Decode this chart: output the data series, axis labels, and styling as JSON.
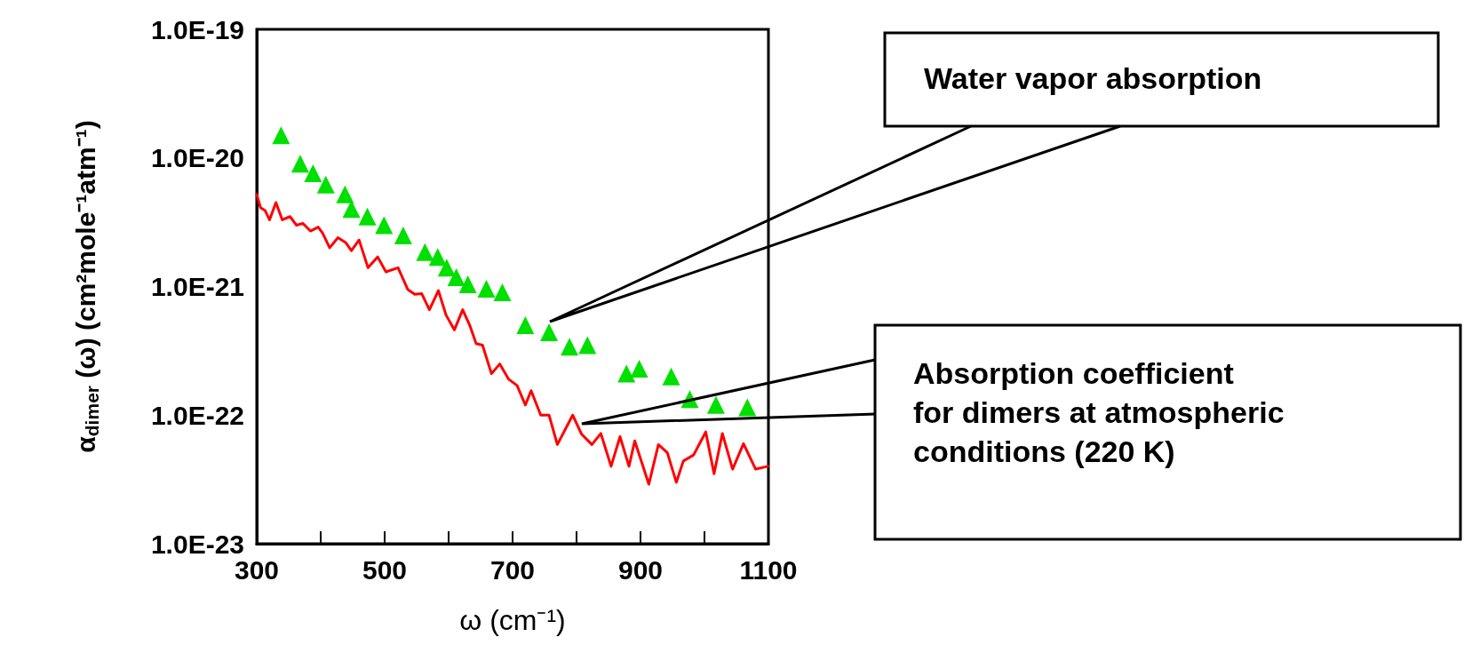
{
  "chart_data": {
    "type": "line",
    "xlabel": "ω (cm⁻¹)",
    "ylabel": "α$_{dimer}$ (ω) (cm²mole⁻¹atm⁻¹)",
    "log": "y",
    "grid": false,
    "xlim": [
      300,
      1100
    ],
    "xticks": [
      300,
      {
        "value": 400,
        "label": null
      },
      500,
      {
        "value": 600,
        "label": null
      },
      700,
      {
        "value": 800,
        "label": null
      },
      900,
      {
        "value": 1000,
        "label": null
      },
      1100
    ],
    "ylim": [
      1e-23,
      1e-19
    ],
    "yticks": [
      {
        "value": 1e-23,
        "label": "1.0E-23"
      },
      {
        "value": 1e-22,
        "label": "1.0E-22"
      },
      {
        "value": 1e-21,
        "label": "1.0E-21"
      },
      {
        "value": 1e-20,
        "label": "1.0E-20"
      },
      {
        "value": 1e-19,
        "label": "1.0E-19"
      }
    ],
    "series": [
      {
        "type": "line",
        "color": "#ff0000",
        "marker": "none",
        "line_style": "solid",
        "x": [
          300,
          306,
          313,
          320,
          330,
          340,
          352,
          362,
          372,
          384,
          396,
          403,
          414,
          427,
          439,
          448,
          460,
          474,
          489,
          502,
          521,
          536,
          547,
          558,
          570,
          584,
          596,
          609,
          622,
          633,
          643,
          653,
          667,
          680,
          694,
          707,
          720,
          729,
          744,
          757,
          770,
          794,
          808,
          824,
          838,
          854,
          868,
          882,
          891,
          913,
          928,
          942,
          956,
          967,
          983,
          1002,
          1015,
          1028,
          1044,
          1061,
          1080,
          1099
        ],
        "values": [
          5.2e-21,
          4.1e-21,
          3.9e-21,
          3.3e-21,
          4.5e-21,
          3.3e-21,
          3.5e-21,
          3e-21,
          3.1e-21,
          2.7e-21,
          2.9e-21,
          2.6e-21,
          2e-21,
          2.4e-21,
          2.2e-21,
          1.9e-21,
          2.3e-21,
          1.4e-21,
          1.7e-21,
          1.3e-21,
          1.4e-21,
          9.5e-22,
          8.7e-22,
          8.8e-22,
          6.6e-22,
          9.3e-22,
          6e-22,
          4.6e-22,
          6.6e-22,
          5e-22,
          3.6e-22,
          3.5e-22,
          2.1e-22,
          2.5e-22,
          1.9e-22,
          1.7e-22,
          1.2e-22,
          1.55e-22,
          1e-22,
          1e-22,
          5.9e-23,
          1e-22,
          7.1e-23,
          5.9e-23,
          7.2e-23,
          4e-23,
          6.8e-23,
          4e-23,
          6.3e-23,
          2.9e-23,
          5.9e-23,
          5.1e-23,
          3e-23,
          4.4e-23,
          4.9e-23,
          7.4e-23,
          3.5e-23,
          7.2e-23,
          3.8e-23,
          6e-23,
          3.8e-23,
          4e-23
        ]
      },
      {
        "type": "scatter",
        "color": "#00e000",
        "marker": "triangle",
        "x": [
          338,
          368,
          388,
          408,
          438,
          448,
          473,
          499,
          529,
          563,
          583,
          597,
          612,
          630,
          659,
          684,
          720,
          757,
          789,
          817,
          878,
          898,
          948,
          977,
          1018,
          1067
        ],
        "values": [
          1.5e-20,
          9e-21,
          7.6e-21,
          6.2e-21,
          5.2e-21,
          4e-21,
          3.5e-21,
          3e-21,
          2.5e-21,
          1.85e-21,
          1.7e-21,
          1.4e-21,
          1.18e-21,
          1.04e-21,
          9.6e-22,
          9e-22,
          5e-22,
          4.4e-22,
          3.4e-22,
          3.5e-22,
          2.1e-22,
          2.3e-22,
          2e-22,
          1.33e-22,
          1.2e-22,
          1.15e-22
        ]
      }
    ],
    "annotations": [
      "Water vapor absorption",
      "Absorption coefficient\nfor dimers at atmospheric\nconditions (220 K)"
    ]
  }
}
